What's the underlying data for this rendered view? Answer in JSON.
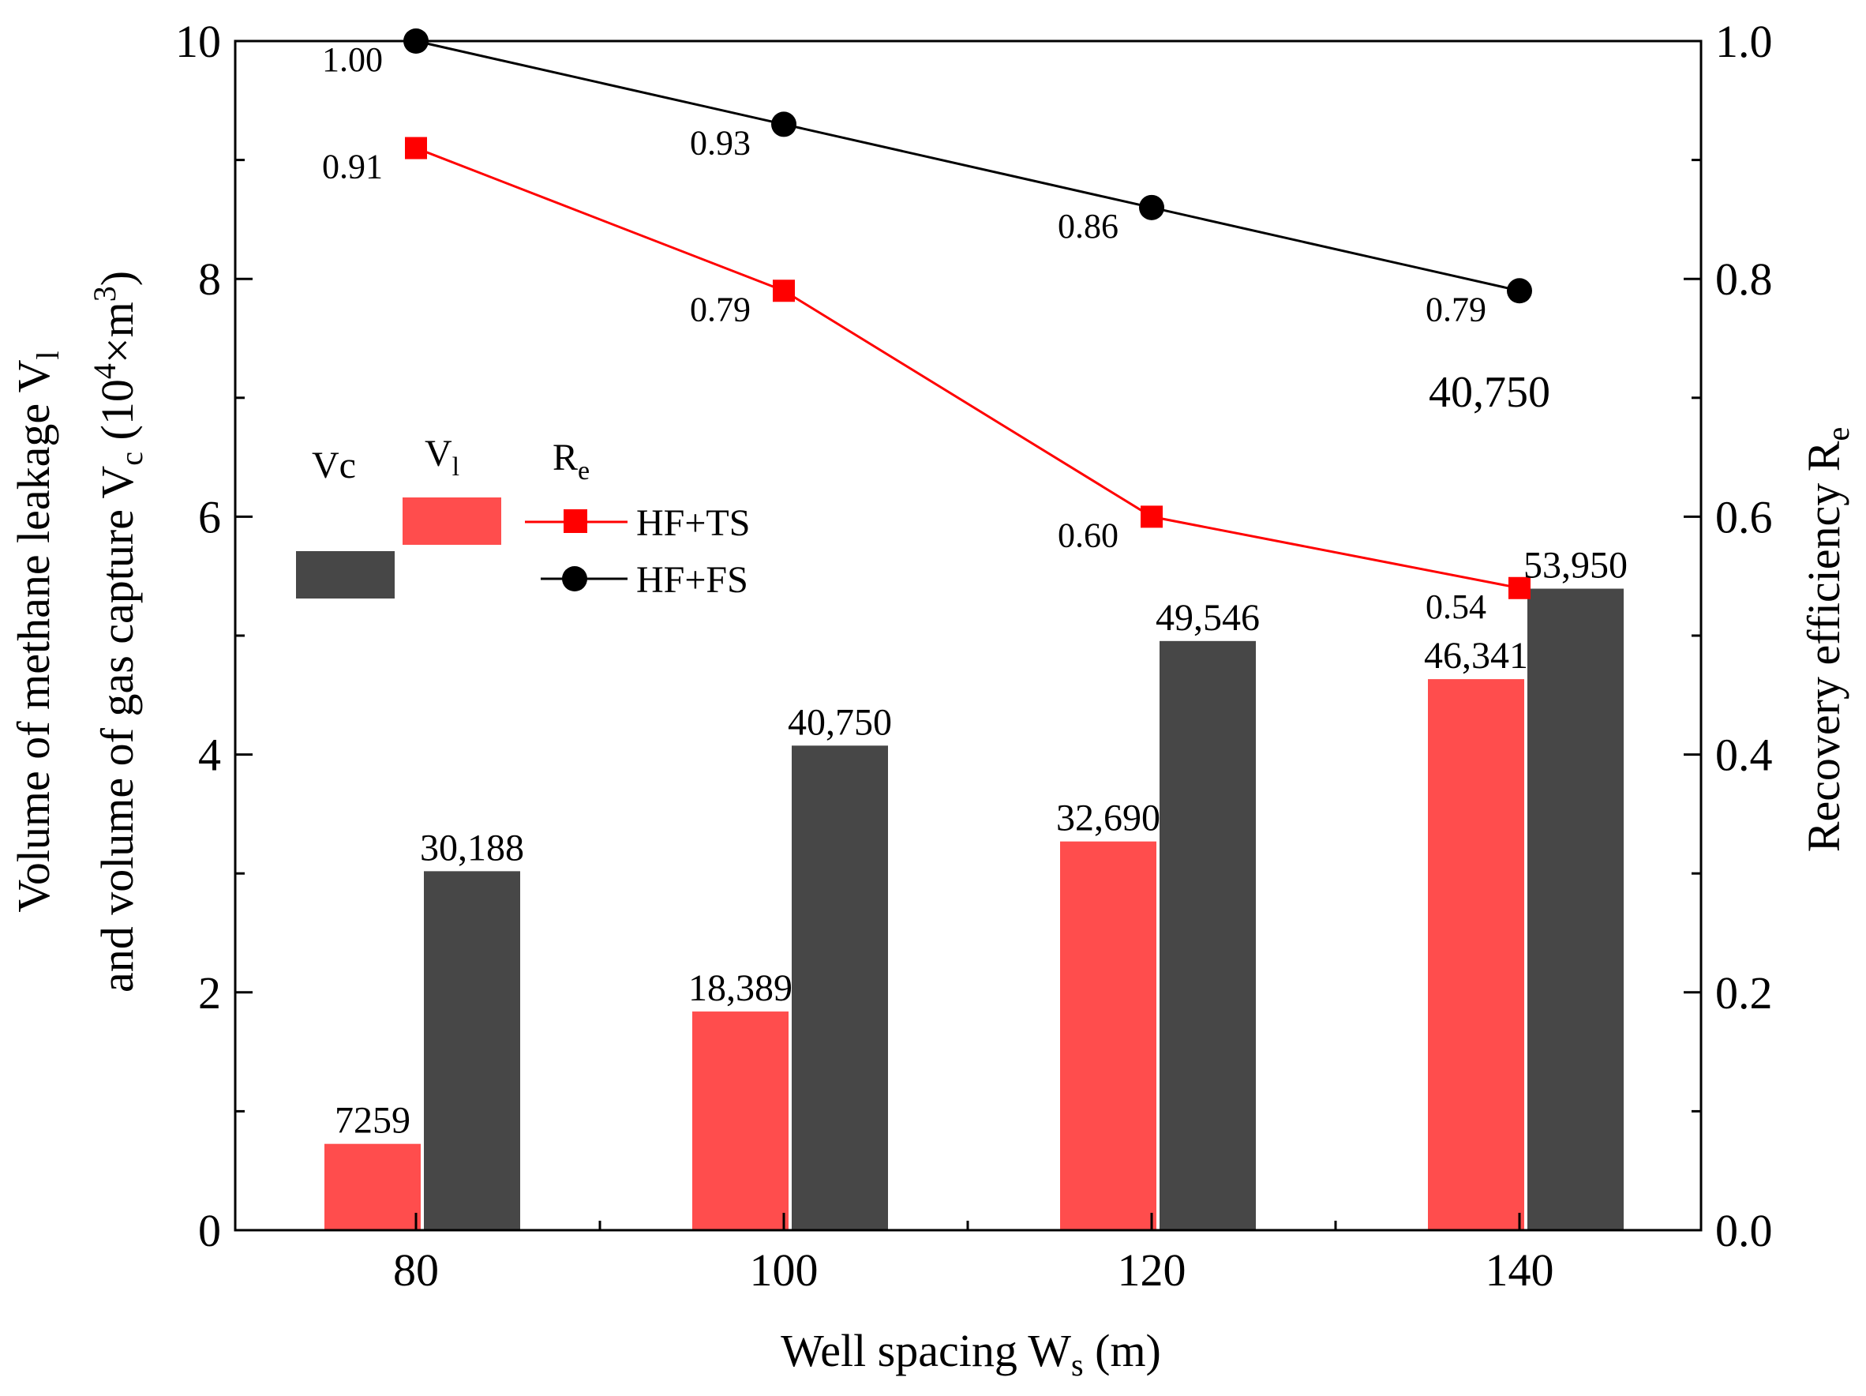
{
  "chart_data": {
    "type": "bar",
    "categories": [
      "80",
      "100",
      "120",
      "140"
    ],
    "xlabel": "Well spacing W",
    "xlabel_sub": "s",
    "xlabel_unit": " (m)",
    "ylabel_line1": "Volume of methane leakage V",
    "ylabel_line1_sub": "l",
    "ylabel_line2": "and volume of gas capture V",
    "ylabel_line2_sub": "c",
    "ylabel_line2_unit": " (10",
    "ylabel_line2_sup": "4",
    "ylabel_line2_tail": "×m",
    "ylabel_line2_sup2": "3",
    "ylabel_line2_close": ")",
    "y2label": "Recovery efficiency R",
    "y2label_sub": "e",
    "ylim": [
      0,
      10
    ],
    "y2lim": [
      0,
      1.0
    ],
    "y_ticks": [
      0,
      2,
      4,
      6,
      8,
      10
    ],
    "y_tick_labels": [
      "0",
      "2",
      "4",
      "6",
      "8",
      "10"
    ],
    "y2_ticks": [
      0,
      0.2,
      0.4,
      0.6,
      0.8,
      1.0
    ],
    "y2_tick_labels": [
      "0.0",
      "0.2",
      "0.4",
      "0.6",
      "0.8",
      "1.0"
    ],
    "bar_series": [
      {
        "name": "V",
        "name_sub": "l",
        "color": "#ff4d4d",
        "values": [
          0.7259,
          1.8389,
          3.269,
          4.6341
        ],
        "labels": [
          "7259",
          "18,389",
          "32,690",
          "46,341"
        ]
      },
      {
        "name": "Vc",
        "color": "#474747",
        "values": [
          3.0188,
          4.075,
          4.9546,
          5.395
        ],
        "labels": [
          "30,188",
          "40,750",
          "49,546",
          "53,950"
        ]
      }
    ],
    "line_series": [
      {
        "name": "HF+TS",
        "color": "#ff0000",
        "marker": "square",
        "values": [
          0.91,
          0.79,
          0.6,
          0.54
        ],
        "labels": [
          "0.91",
          "0.79",
          "0.60",
          "0.54"
        ]
      },
      {
        "name": "HF+FS",
        "color": "#000000",
        "marker": "circle",
        "values": [
          1.0,
          0.93,
          0.86,
          0.79
        ],
        "labels": [
          "1.00",
          "0.93",
          "0.86",
          "0.79"
        ]
      }
    ],
    "line_legend_title": "R",
    "line_legend_title_sub": "e",
    "annotation": "40,750",
    "grid": false
  }
}
